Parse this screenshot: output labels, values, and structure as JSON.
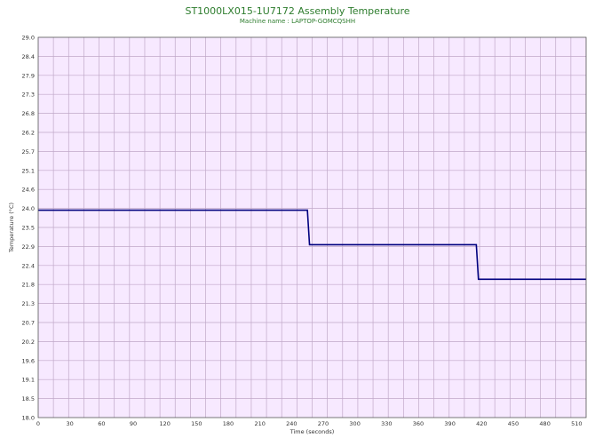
{
  "chart_data": {
    "type": "line",
    "title": "ST1000LX015-1U7172 Assembly Temperature",
    "subtitle": "Machine name : LAPTOP-GOMCQSHH",
    "xlabel": "Time (seconds)",
    "ylabel": "Temperature (°C)",
    "xlim": [
      0,
      519
    ],
    "ylim": [
      18.0,
      29.0
    ],
    "xticks": [
      "0",
      "30",
      "60",
      "90",
      "120",
      "150",
      "180",
      "210",
      "240",
      "270",
      "300",
      "330",
      "360",
      "390",
      "420",
      "450",
      "480",
      "510"
    ],
    "yticks": [
      "18.0",
      "18.5",
      "19.1",
      "19.6",
      "20.2",
      "20.7",
      "21.3",
      "21.8",
      "22.4",
      "22.9",
      "23.5",
      "24.0",
      "24.6",
      "25.1",
      "25.7",
      "26.2",
      "26.8",
      "27.3",
      "27.9",
      "28.4",
      "29.0"
    ],
    "grid": true,
    "series": [
      {
        "x": [
          0,
          255,
          257,
          415,
          417,
          519
        ],
        "y": [
          24.0,
          24.0,
          23.0,
          23.0,
          22.0,
          22.0
        ]
      }
    ],
    "colors": {
      "line": "#00007f",
      "plot_bg": "#f7e9ff",
      "grid": "#c0a8c8",
      "title": "#2e7d2e"
    }
  }
}
